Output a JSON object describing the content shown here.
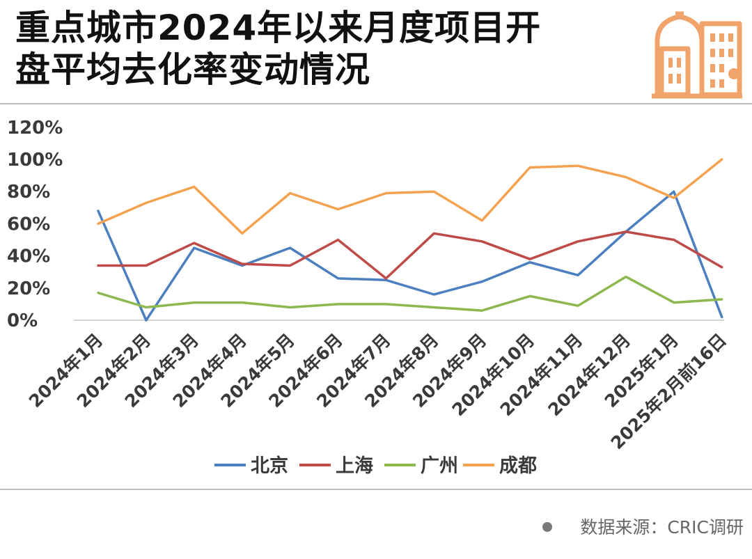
{
  "title_line1": "重点城市2024年以来月度项目开",
  "title_line2": "盘平均去化率变动情况",
  "source_text": "数据来源：CRIC调研",
  "logo_icon": "building-icon",
  "chart_data": {
    "type": "line",
    "categories": [
      "2024年1月",
      "2024年2月",
      "2024年3月",
      "2024年4月",
      "2024年5月",
      "2024年6月",
      "2024年7月",
      "2024年8月",
      "2024年9月",
      "2024年10月",
      "2024年11月",
      "2024年12月",
      "2025年1月",
      "2025年2月前16日"
    ],
    "yticks": [
      "0%",
      "20%",
      "40%",
      "60%",
      "80%",
      "100%",
      "120%"
    ],
    "ylim": [
      0,
      120
    ],
    "grid": "horizontal baseline only",
    "legend": "bottom",
    "series": [
      {
        "name": "北京",
        "color": "#4b7fbf",
        "values": [
          68,
          0,
          45,
          34,
          45,
          26,
          25,
          16,
          24,
          36,
          28,
          55,
          80,
          2
        ]
      },
      {
        "name": "上海",
        "color": "#bf4b49",
        "values": [
          34,
          34,
          48,
          35,
          34,
          50,
          26,
          54,
          49,
          38,
          49,
          55,
          50,
          33
        ]
      },
      {
        "name": "广州",
        "color": "#8db84f",
        "values": [
          17,
          8,
          11,
          11,
          8,
          10,
          10,
          8,
          6,
          15,
          9,
          27,
          11,
          13
        ]
      },
      {
        "name": "成都",
        "color": "#f5a250",
        "values": [
          60,
          73,
          83,
          54,
          79,
          69,
          79,
          80,
          62,
          95,
          96,
          89,
          76,
          100
        ]
      }
    ]
  }
}
